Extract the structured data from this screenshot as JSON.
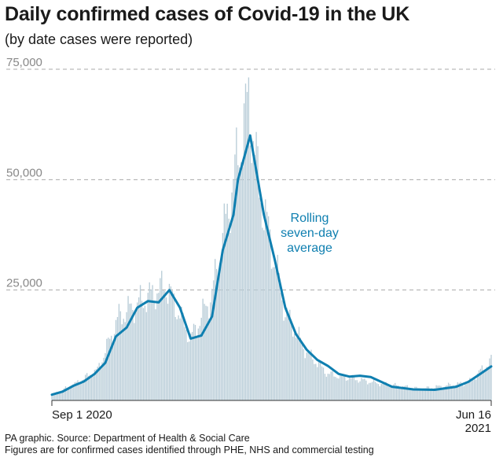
{
  "title": "Daily confirmed cases of Covid-19 in the UK",
  "subtitle": "(by date cases were reported)",
  "source_line1": "PA graphic. Source: Department of Health & Social Care",
  "source_line2": "Figures are for confirmed cases identified through PHE, NHS and commercial testing",
  "chart_data": {
    "type": "bar",
    "title": "Daily confirmed cases of Covid-19 in the UK",
    "subtitle": "(by date cases were reported)",
    "xlabel": "",
    "ylabel": "",
    "x_start_label": "Sep 1 2020",
    "x_end_label_1": "Jun 16",
    "x_end_label_2": "2021",
    "x_range": [
      "2020-09-01",
      "2021-06-16"
    ],
    "ylim": [
      0,
      75000
    ],
    "yticks": [
      25000,
      50000,
      75000
    ],
    "ytick_labels": [
      "25,000",
      "50,000",
      "75,000"
    ],
    "grid": "horizontal dashed",
    "annotation": [
      "Rolling",
      "seven-day",
      "average"
    ],
    "bar_color": "#b9cdd8",
    "line_color": "#0f7fb0",
    "series": [
      {
        "type": "bar",
        "x": [
          "2020-09-01",
          "2020-09-15",
          "2020-10-01",
          "2020-10-15",
          "2020-11-01",
          "2020-11-15",
          "2020-12-01",
          "2020-12-15",
          "2021-01-01",
          "2021-01-08",
          "2021-01-15",
          "2021-02-01",
          "2021-02-15",
          "2021-03-01",
          "2021-04-01",
          "2021-05-01",
          "2021-06-01",
          "2021-06-16"
        ],
        "values": [
          1300,
          3500,
          6900,
          19000,
          23000,
          26000,
          14000,
          24000,
          55000,
          68000,
          48000,
          20000,
          11000,
          6000,
          4000,
          2600,
          4000,
          9000
        ]
      },
      {
        "type": "line",
        "name": "Rolling seven-day average",
        "x": [
          "2020-09-01",
          "2020-09-08",
          "2020-09-15",
          "2020-09-22",
          "2020-09-29",
          "2020-10-06",
          "2020-10-13",
          "2020-10-20",
          "2020-10-27",
          "2020-11-03",
          "2020-11-10",
          "2020-11-17",
          "2020-11-24",
          "2020-12-01",
          "2020-12-08",
          "2020-12-15",
          "2020-12-22",
          "2020-12-29",
          "2021-01-01",
          "2021-01-05",
          "2021-01-09",
          "2021-01-13",
          "2021-01-18",
          "2021-01-25",
          "2021-02-01",
          "2021-02-08",
          "2021-02-15",
          "2021-02-22",
          "2021-03-01",
          "2021-03-08",
          "2021-03-15",
          "2021-03-22",
          "2021-03-29",
          "2021-04-12",
          "2021-04-26",
          "2021-05-10",
          "2021-05-24",
          "2021-06-01",
          "2021-06-08",
          "2021-06-16"
        ],
        "values": [
          1300,
          2000,
          3300,
          4300,
          6000,
          8500,
          14500,
          16500,
          21000,
          22500,
          22200,
          25000,
          21000,
          14000,
          14700,
          19000,
          34000,
          42000,
          50000,
          55000,
          60000,
          52000,
          42000,
          32000,
          21000,
          15000,
          11500,
          9200,
          7800,
          6000,
          5400,
          5600,
          5300,
          3100,
          2500,
          2400,
          3100,
          4200,
          5800,
          7700
        ]
      }
    ]
  }
}
